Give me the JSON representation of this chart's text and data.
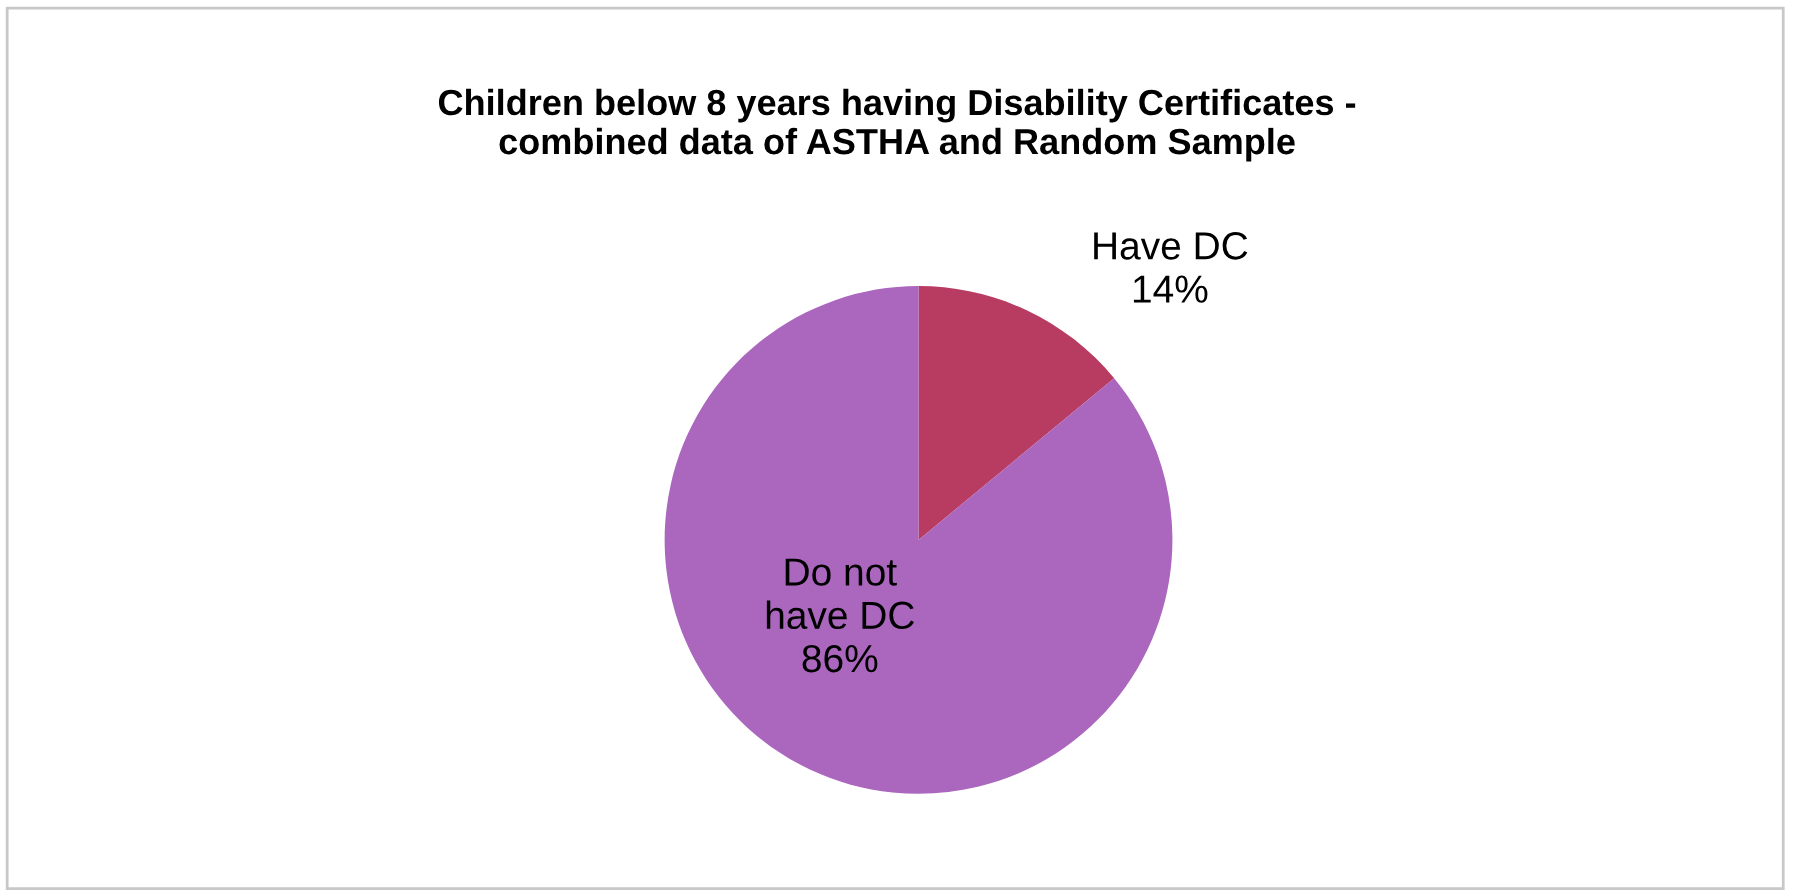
{
  "chart_data": {
    "type": "pie",
    "title": "Children below 8 years having Disability Certificates -\ncombined data of ASTHA and Random Sample",
    "categories": [
      "Have DC",
      "Do not\nhave DC"
    ],
    "values": [
      14,
      86
    ],
    "colors": [
      "#b83b62",
      "#ab66be"
    ],
    "value_labels": [
      "14%",
      "86%"
    ]
  }
}
